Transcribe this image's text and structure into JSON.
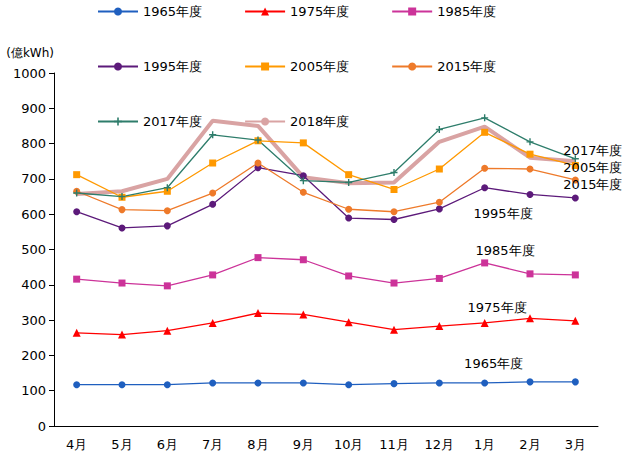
{
  "chart_data": {
    "type": "line",
    "y_label": "(億kWh)",
    "categories": [
      "4月",
      "5月",
      "6月",
      "7月",
      "8月",
      "9月",
      "10月",
      "11月",
      "12月",
      "1月",
      "2月",
      "3月"
    ],
    "series": [
      {
        "name": "1965年度",
        "color": "#1f5fbf",
        "marker": "circle",
        "values": [
          117,
          117,
          117,
          122,
          122,
          122,
          117,
          120,
          122,
          122,
          125,
          125
        ]
      },
      {
        "name": "1975年度",
        "color": "#ff0000",
        "marker": "triangle",
        "values": [
          264,
          259,
          270,
          292,
          320,
          316,
          294,
          273,
          283,
          292,
          305,
          298
        ]
      },
      {
        "name": "1985年度",
        "color": "#cc3399",
        "marker": "square",
        "values": [
          416,
          405,
          397,
          428,
          477,
          471,
          425,
          405,
          418,
          462,
          431,
          428
        ]
      },
      {
        "name": "1995年度",
        "color": "#5c1a7a",
        "marker": "circle",
        "values": [
          607,
          561,
          567,
          628,
          732,
          709,
          589,
          585,
          615,
          675,
          656,
          646
        ]
      },
      {
        "name": "2005年度",
        "color": "#ff9900",
        "marker": "square",
        "values": [
          712,
          648,
          665,
          745,
          808,
          802,
          712,
          670,
          728,
          832,
          770,
          738
        ]
      },
      {
        "name": "2015年度",
        "color": "#ee7a2a",
        "marker": "circle",
        "values": [
          665,
          613,
          610,
          660,
          745,
          662,
          614,
          607,
          634,
          730,
          728,
          697
        ]
      },
      {
        "name": "2017年度",
        "color": "#2e7d6b",
        "marker": "plus",
        "values": [
          660,
          650,
          675,
          825,
          810,
          695,
          690,
          718,
          840,
          873,
          805,
          757
        ]
      },
      {
        "name": "2018年度",
        "color": "#d9a3a3",
        "marker": "none",
        "values": [
          657,
          665,
          700,
          865,
          850,
          705,
          688,
          690,
          805,
          848,
          760,
          750
        ]
      }
    ],
    "ylim": [
      0,
      1000
    ],
    "yticks": [
      0,
      100,
      200,
      300,
      400,
      500,
      600,
      700,
      800,
      900,
      1000
    ],
    "grid": false,
    "legend": "top",
    "annotations": [
      "2017年度",
      "2005年度",
      "2015年度",
      "1995年度",
      "1985年度",
      "1975年度",
      "1965年度"
    ]
  }
}
